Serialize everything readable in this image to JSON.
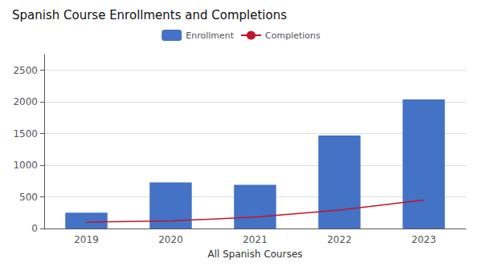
{
  "chart_data": {
    "type": "bar",
    "title": "Spanish Course Enrollments and Completions",
    "xlabel": "All Spanish Courses",
    "categories": [
      "2019",
      "2020",
      "2021",
      "2022",
      "2023"
    ],
    "series": [
      {
        "name": "Enrollment",
        "type": "bar",
        "color": "#4472C4",
        "values": [
          250,
          730,
          690,
          1470,
          2040
        ]
      },
      {
        "name": "Completions",
        "type": "line",
        "color": "#C0152B",
        "values": [
          100,
          120,
          180,
          290,
          450
        ]
      }
    ],
    "ylim": [
      0,
      2750
    ],
    "yticks": [
      0,
      500,
      1000,
      1500,
      2000,
      2500
    ],
    "grid": true,
    "legend": "top"
  }
}
